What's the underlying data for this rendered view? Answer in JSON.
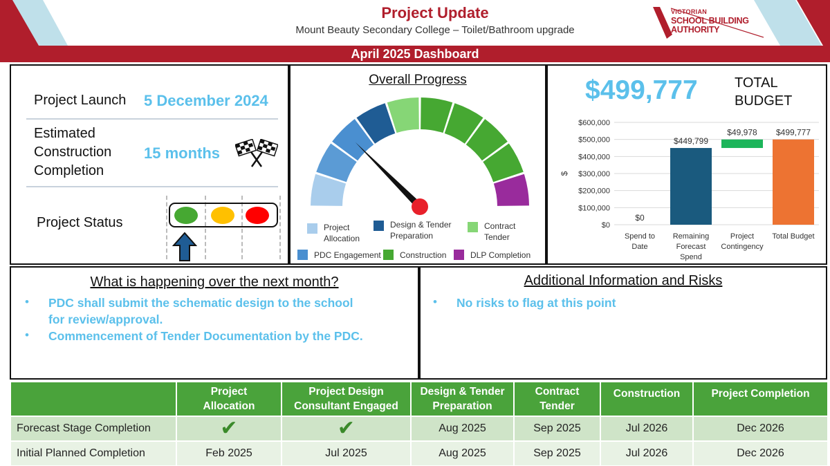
{
  "header": {
    "title": "Project Update",
    "subtitle": "Mount Beauty Secondary College – Toilet/Bathroom upgrade",
    "brand_line1": "VICTORIAN",
    "brand_line2": "SCHOOL BUILDING",
    "brand_line3": "AUTHORITY",
    "banner": "April 2025 Dashboard"
  },
  "summary": {
    "launch_label": "Project Launch",
    "launch_value": "5 December 2024",
    "completion_label_1": "Estimated",
    "completion_label_2": "Construction",
    "completion_label_3": "Completion",
    "completion_value": "15 months",
    "status_label": "Project Status",
    "status_lights": [
      {
        "name": "green",
        "color": "#46a832"
      },
      {
        "name": "amber",
        "color": "#ffc000"
      },
      {
        "name": "red",
        "color": "#ff0000"
      }
    ],
    "status_current": "green",
    "icons": {
      "finish": "checkered-flags-icon",
      "indicator": "up-arrow-icon"
    }
  },
  "progress": {
    "title": "Overall Progress",
    "current_segment_index": 2,
    "segments": [
      {
        "color": "#a9cdec"
      },
      {
        "color": "#5b9bd5"
      },
      {
        "color": "#4a8fd0"
      },
      {
        "color": "#1f5c94"
      },
      {
        "color": "#86d676"
      },
      {
        "color": "#46a832"
      },
      {
        "color": "#46a832"
      },
      {
        "color": "#46a832"
      },
      {
        "color": "#46a832"
      },
      {
        "color": "#992b9c"
      }
    ],
    "legend": [
      {
        "label_1": "Project",
        "label_2": "Allocation",
        "color": "#a9cdec"
      },
      {
        "label_1": "Design & Tender",
        "label_2": "Preparation",
        "color": "#1f5c94"
      },
      {
        "label_1": "Contract",
        "label_2": "Tender",
        "color": "#86d676"
      },
      {
        "label_1": "PDC Engagement",
        "label_2": "",
        "color": "#4a8fd0"
      },
      {
        "label_1": "Construction",
        "label_2": "",
        "color": "#46a832"
      },
      {
        "label_1": "DLP Completion",
        "label_2": "",
        "color": "#992b9c"
      }
    ]
  },
  "budget": {
    "total_value": "$499,777",
    "total_label_1": "TOTAL",
    "total_label_2": "BUDGET"
  },
  "chart_data": {
    "type": "bar",
    "subtype": "waterfall",
    "title": "",
    "xlabel": "",
    "ylabel": "$",
    "ylim": [
      0,
      600000
    ],
    "yticks": [
      0,
      100000,
      200000,
      300000,
      400000,
      500000,
      600000
    ],
    "ytick_labels": [
      "$0",
      "$100,000",
      "$200,000",
      "$300,000",
      "$400,000",
      "$500,000",
      "$600,000"
    ],
    "grid": true,
    "categories": [
      [
        "Spend to",
        "Date"
      ],
      [
        "Remaining",
        "Forecast",
        "Spend"
      ],
      [
        "Project",
        "Contingency"
      ],
      [
        "Total Budget"
      ]
    ],
    "bars": [
      {
        "start": 0,
        "value": 0,
        "label": "$0",
        "color": "#1f5c94"
      },
      {
        "start": 0,
        "value": 449799,
        "label": "$449,799",
        "color": "#1a5a7e"
      },
      {
        "start": 449799,
        "value": 49978,
        "label": "$49,978",
        "color": "#1cb55a"
      },
      {
        "start": 0,
        "value": 499777,
        "label": "$499,777",
        "color": "#ed7332"
      }
    ]
  },
  "next_month": {
    "title": "What is happening over the next month?",
    "bullets": [
      {
        "line1": "PDC shall submit the schematic design to the school",
        "line2": "for review/approval."
      },
      {
        "line1": "Commencement of Tender Documentation by the PDC.",
        "line2": ""
      }
    ]
  },
  "risks": {
    "title": "Additional Information and Risks",
    "bullets": [
      {
        "line1": "No risks to flag at this point"
      }
    ]
  },
  "stages": {
    "corner": "",
    "headers": [
      {
        "l1": "Project",
        "l2": "Allocation"
      },
      {
        "l1": "Project Design",
        "l2": "Consultant Engaged"
      },
      {
        "l1": "Design & Tender",
        "l2": "Preparation"
      },
      {
        "l1": "Contract",
        "l2": "Tender"
      },
      {
        "l1": "Construction",
        "l2": ""
      },
      {
        "l1": "Project Completion",
        "l2": ""
      }
    ],
    "rows": [
      {
        "label": "Forecast Stage Completion",
        "cells": [
          "✔",
          "✔",
          "Aug 2025",
          "Sep 2025",
          "Jul 2026",
          "Dec 2026"
        ]
      },
      {
        "label": "Initial Planned Completion",
        "cells": [
          "Feb 2025",
          "Jul 2025",
          "Aug 2025",
          "Sep 2025",
          "Jul 2026",
          "Dec 2026"
        ]
      }
    ],
    "check_color": "#3a8a2a"
  }
}
